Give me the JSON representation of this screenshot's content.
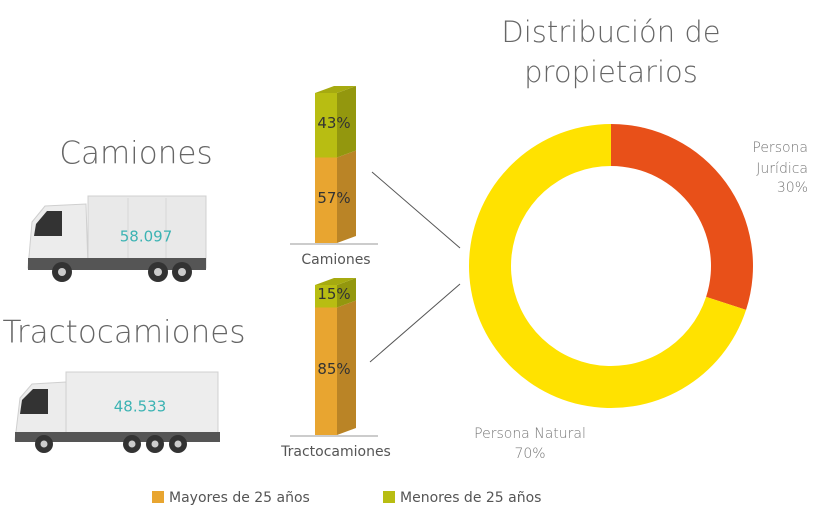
{
  "chart_data": [
    {
      "type": "stacked-bar",
      "categories": [
        "Camiones",
        "Tractocamiones"
      ],
      "series": [
        {
          "name": "Mayores de 25 años",
          "color": "#e8a530",
          "values": [
            57,
            85
          ],
          "value_labels": [
            "57%",
            "85%"
          ]
        },
        {
          "name": "Menores de 25 años",
          "color": "#b8bd12",
          "values": [
            43,
            15
          ],
          "value_labels": [
            "43%",
            "15%"
          ]
        }
      ]
    },
    {
      "type": "donut",
      "title": "Distribución de propietarios",
      "categories": [
        "Persona Jurídica",
        "Persona Natural"
      ],
      "values": [
        30,
        70
      ],
      "value_labels": [
        "30%",
        "70%"
      ],
      "colors": [
        "#e85019",
        "#ffe200"
      ]
    }
  ],
  "vehicles": [
    {
      "label": "Camiones",
      "count": "58.097"
    },
    {
      "label": "Tractocamiones",
      "count": "48.533"
    }
  ]
}
